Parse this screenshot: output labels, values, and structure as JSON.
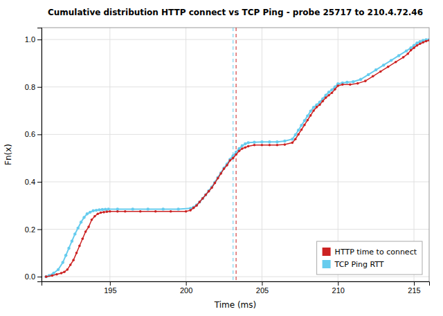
{
  "chart_data": {
    "type": "line",
    "title": "Cumulative distribution HTTP connect vs TCP Ping - probe 25717 to 210.4.72.46",
    "x_label": "Time (ms)",
    "y_label": "Fn(x)",
    "xlim": [
      190.5,
      216.0
    ],
    "ylim": [
      -0.02,
      1.05
    ],
    "xticks": [
      195,
      200,
      205,
      210,
      215
    ],
    "yticks": [
      {
        "value": 0.0,
        "label": "0.0"
      },
      0.2,
      0.4,
      0.6,
      0.8,
      {
        "value": 1.0,
        "label": "1.0"
      }
    ],
    "grid": true,
    "legend": "lower right",
    "series": [
      {
        "name": "HTTP time to connect",
        "color": "#cc2222",
        "marker": "circle",
        "line_style": "solid",
        "vline_x": 203.3,
        "x": [
          190.8,
          191.2,
          191.5,
          191.8,
          192.0,
          192.2,
          192.4,
          192.6,
          192.8,
          193.0,
          193.2,
          193.4,
          193.6,
          193.8,
          194.0,
          194.2,
          194.4,
          194.6,
          194.8,
          195.0,
          195.5,
          196.0,
          197.0,
          198.0,
          199.0,
          200.0,
          200.3,
          200.5,
          200.7,
          200.9,
          201.1,
          201.3,
          201.5,
          201.7,
          201.9,
          202.1,
          202.3,
          202.5,
          202.7,
          202.9,
          203.1,
          203.3,
          203.5,
          203.7,
          203.9,
          204.1,
          204.5,
          205.0,
          205.5,
          206.0,
          206.5,
          207.0,
          207.2,
          207.4,
          207.6,
          207.8,
          208.0,
          208.2,
          208.4,
          208.6,
          208.8,
          209.0,
          209.2,
          209.4,
          209.6,
          209.8,
          210.0,
          210.3,
          210.8,
          211.3,
          211.8,
          212.3,
          212.8,
          213.3,
          213.8,
          214.3,
          214.6,
          214.8,
          215.0,
          215.2,
          215.4,
          215.6,
          215.8,
          216.0
        ],
        "values": [
          0.0,
          0.005,
          0.01,
          0.015,
          0.02,
          0.03,
          0.05,
          0.07,
          0.1,
          0.13,
          0.16,
          0.19,
          0.21,
          0.24,
          0.255,
          0.265,
          0.27,
          0.272,
          0.274,
          0.275,
          0.275,
          0.275,
          0.275,
          0.275,
          0.275,
          0.275,
          0.28,
          0.29,
          0.3,
          0.315,
          0.33,
          0.345,
          0.36,
          0.375,
          0.395,
          0.415,
          0.435,
          0.455,
          0.47,
          0.49,
          0.5,
          0.515,
          0.53,
          0.54,
          0.545,
          0.55,
          0.555,
          0.555,
          0.555,
          0.555,
          0.557,
          0.565,
          0.58,
          0.6,
          0.62,
          0.64,
          0.66,
          0.68,
          0.7,
          0.715,
          0.725,
          0.74,
          0.755,
          0.765,
          0.775,
          0.79,
          0.805,
          0.81,
          0.81,
          0.815,
          0.825,
          0.845,
          0.865,
          0.885,
          0.905,
          0.925,
          0.94,
          0.955,
          0.965,
          0.975,
          0.982,
          0.988,
          0.993,
          0.997
        ]
      },
      {
        "name": "TCP Ping RTT",
        "color": "#66ccee",
        "marker": "circle",
        "line_style": "solid",
        "vline_x": 203.1,
        "x": [
          190.8,
          191.0,
          191.3,
          191.6,
          191.9,
          192.1,
          192.3,
          192.5,
          192.7,
          192.9,
          193.1,
          193.3,
          193.5,
          193.7,
          193.9,
          194.1,
          194.3,
          194.5,
          194.7,
          194.9,
          195.5,
          196.5,
          197.5,
          198.5,
          199.5,
          200.3,
          200.5,
          200.7,
          200.9,
          201.1,
          201.3,
          201.5,
          201.7,
          201.9,
          202.1,
          202.3,
          202.5,
          202.7,
          202.9,
          203.1,
          203.3,
          203.5,
          203.7,
          203.9,
          204.1,
          204.5,
          205.0,
          205.5,
          206.0,
          206.5,
          207.0,
          207.2,
          207.4,
          207.6,
          207.8,
          208.0,
          208.2,
          208.4,
          208.6,
          208.8,
          209.0,
          209.2,
          209.4,
          209.6,
          209.8,
          210.0,
          210.3,
          210.6,
          211.0,
          211.5,
          212.0,
          212.5,
          213.0,
          213.5,
          214.0,
          214.5,
          214.8,
          215.0,
          215.2,
          215.4,
          215.6,
          215.8,
          216.0
        ],
        "values": [
          0.0,
          0.005,
          0.015,
          0.03,
          0.06,
          0.09,
          0.12,
          0.15,
          0.18,
          0.205,
          0.23,
          0.25,
          0.265,
          0.272,
          0.278,
          0.28,
          0.282,
          0.283,
          0.284,
          0.285,
          0.285,
          0.285,
          0.285,
          0.285,
          0.285,
          0.288,
          0.293,
          0.302,
          0.315,
          0.33,
          0.345,
          0.362,
          0.378,
          0.398,
          0.418,
          0.438,
          0.458,
          0.475,
          0.495,
          0.51,
          0.525,
          0.54,
          0.552,
          0.56,
          0.565,
          0.567,
          0.568,
          0.568,
          0.568,
          0.572,
          0.58,
          0.598,
          0.618,
          0.638,
          0.658,
          0.678,
          0.698,
          0.714,
          0.724,
          0.736,
          0.75,
          0.765,
          0.778,
          0.788,
          0.8,
          0.813,
          0.817,
          0.82,
          0.822,
          0.832,
          0.852,
          0.872,
          0.892,
          0.912,
          0.932,
          0.952,
          0.965,
          0.975,
          0.985,
          0.991,
          0.996,
          0.999,
          1.0
        ]
      }
    ]
  }
}
